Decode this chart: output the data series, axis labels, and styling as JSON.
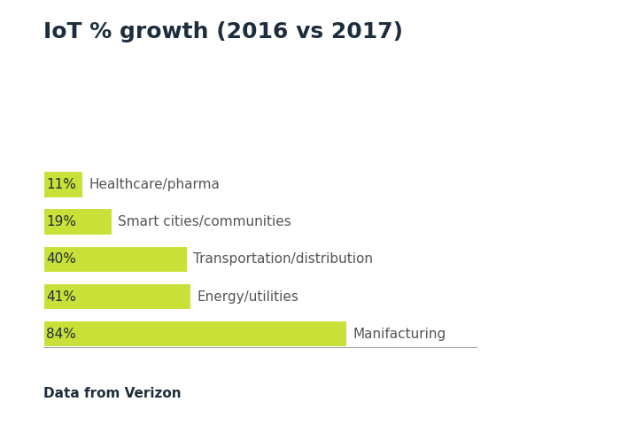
{
  "title": "IoT % growth (2016 vs 2017)",
  "subtitle": "Data from Verizon",
  "categories": [
    "Healthcare/pharma",
    "Smart cities/communities",
    "Transportation/distribution",
    "Energy/utilities",
    "Manifacturing"
  ],
  "values": [
    11,
    19,
    40,
    41,
    84
  ],
  "bar_color": "#c8e037",
  "bar_labels": [
    "11%",
    "19%",
    "40%",
    "41%",
    "84%"
  ],
  "title_color": "#1e2d3d",
  "label_color": "#555555",
  "background_color": "#ffffff",
  "title_fontsize": 18,
  "subtitle_fontsize": 11,
  "bar_label_fontsize": 11,
  "category_fontsize": 11,
  "xlim": [
    0,
    120
  ]
}
